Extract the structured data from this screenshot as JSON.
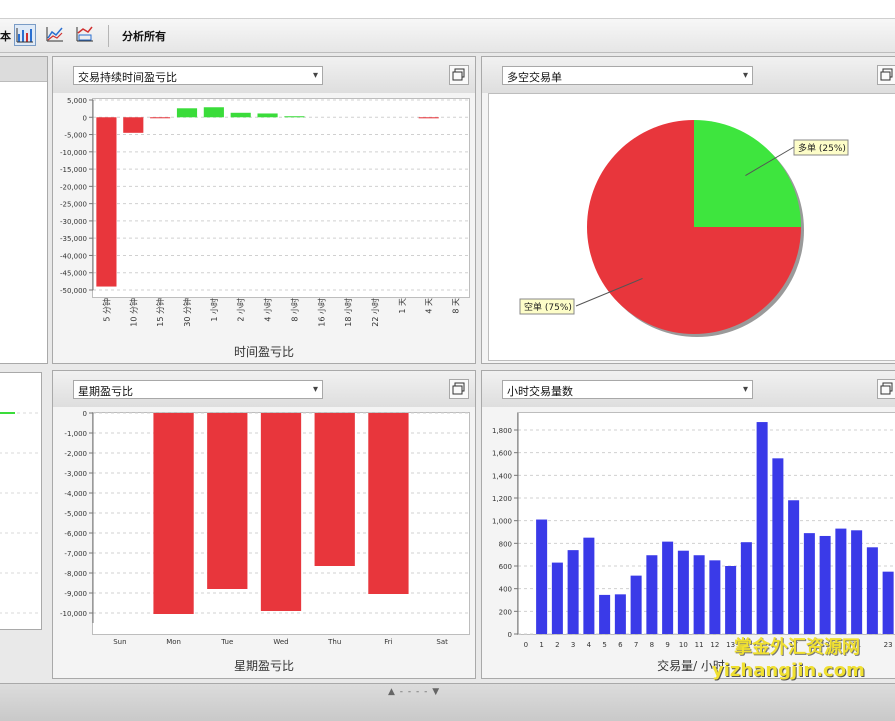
{
  "toolbar": {
    "partial_label": "本",
    "analyze_all_label": "分析所有",
    "icons": [
      "bar-chart-icon",
      "line-chart-icon",
      "pos-chart-icon"
    ]
  },
  "panels": {
    "duration": {
      "combo_label": "交易持续时间盈亏比",
      "xlabel": "时间盈亏比"
    },
    "longshort": {
      "combo_label": "多空交易单"
    },
    "weekday": {
      "combo_label": "星期盈亏比",
      "xlabel": "星期盈亏比"
    },
    "hourly": {
      "combo_label": "小时交易量数",
      "xlabel": "交易量/ 小时"
    }
  },
  "watermark": {
    "line1": "掌金外汇资源网",
    "line2": "yizhangjin.com"
  },
  "status": {
    "handle": "▲ - - - - ▼"
  },
  "chart_data": [
    {
      "id": "duration",
      "type": "bar",
      "categories": [
        "5 分钟",
        "10 分钟",
        "15 分钟",
        "30 分钟",
        "1 小时",
        "2 小时",
        "4 小时",
        "8 小时",
        "16 小时",
        "18 小时",
        "22 小时",
        "1 天",
        "4 天",
        "8 天"
      ],
      "values": [
        -49000,
        -4500,
        -200,
        2600,
        2900,
        1300,
        1100,
        300,
        0,
        0,
        0,
        0,
        -300,
        0
      ],
      "colors": {
        "positive": "#3adc3a",
        "negative": "#e8363c"
      },
      "ylim": [
        -50000,
        5000
      ],
      "yticks": [
        "5,000",
        "0",
        "-5,000",
        "-10,000",
        "-15,000",
        "-20,000",
        "-25,000",
        "-30,000",
        "-35,000",
        "-40,000",
        "-45,000",
        "-50,000"
      ],
      "xlabel": "时间盈亏比",
      "grid": true
    },
    {
      "id": "longshort",
      "type": "pie",
      "slices": [
        {
          "label": "多单 (25%)",
          "value": 25,
          "color": "#3ee53e"
        },
        {
          "label": "空单 (75%)",
          "value": 75,
          "color": "#e8363c"
        }
      ]
    },
    {
      "id": "weekday",
      "type": "bar",
      "categories": [
        "Sun",
        "Mon",
        "Tue",
        "Wed",
        "Thu",
        "Fri",
        "Sat"
      ],
      "values": [
        0,
        -10050,
        -8800,
        -9900,
        -7650,
        -9050,
        0
      ],
      "colors": {
        "positive": "#3adc3a",
        "negative": "#e8363c"
      },
      "ylim": [
        -10500,
        0
      ],
      "yticks": [
        "0",
        "-1,000",
        "-2,000",
        "-3,000",
        "-4,000",
        "-5,000",
        "-6,000",
        "-7,000",
        "-8,000",
        "-9,000",
        "-10,000"
      ],
      "xlabel": "星期盈亏比",
      "grid": true
    },
    {
      "id": "hourly",
      "type": "bar",
      "categories": [
        "0",
        "1",
        "2",
        "3",
        "4",
        "5",
        "6",
        "7",
        "8",
        "9",
        "10",
        "11",
        "12",
        "13",
        "14",
        "15",
        "16",
        "17",
        "18",
        "19",
        "20",
        "21",
        "22",
        "23"
      ],
      "values": [
        0,
        1010,
        630,
        740,
        850,
        345,
        350,
        515,
        695,
        815,
        735,
        695,
        650,
        600,
        810,
        1870,
        1550,
        1180,
        890,
        865,
        930,
        915,
        765,
        550
      ],
      "colors": {
        "positive": "#3a3ae8"
      },
      "ylim": [
        0,
        1950
      ],
      "yticks": [
        "1,800",
        "1,600",
        "1,400",
        "1,200",
        "1,000",
        "800",
        "600",
        "400",
        "200",
        "0"
      ],
      "xticks": [
        "0",
        "1",
        "2",
        "3",
        "4",
        "5",
        "6",
        "7",
        "8",
        "9",
        "10",
        "11",
        "12",
        "13",
        "",
        "",
        "",
        "17",
        "",
        "19",
        "",
        "21",
        "",
        "23"
      ],
      "xlabel": "交易量/ 小时",
      "grid": true
    }
  ]
}
